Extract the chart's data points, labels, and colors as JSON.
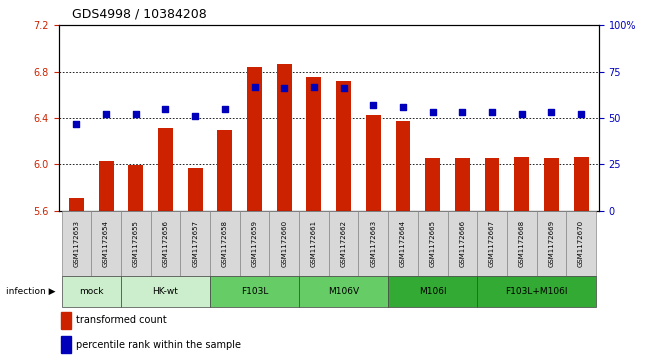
{
  "title": "GDS4998 / 10384208",
  "samples": [
    "GSM1172653",
    "GSM1172654",
    "GSM1172655",
    "GSM1172656",
    "GSM1172657",
    "GSM1172658",
    "GSM1172659",
    "GSM1172660",
    "GSM1172661",
    "GSM1172662",
    "GSM1172663",
    "GSM1172664",
    "GSM1172665",
    "GSM1172666",
    "GSM1172667",
    "GSM1172668",
    "GSM1172669",
    "GSM1172670"
  ],
  "transformed_count": [
    5.71,
    6.03,
    5.99,
    6.31,
    5.97,
    6.3,
    6.84,
    6.87,
    6.75,
    6.72,
    6.43,
    6.37,
    6.05,
    6.05,
    6.05,
    6.06,
    6.05,
    6.06
  ],
  "percentile_rank": [
    47,
    52,
    52,
    55,
    51,
    55,
    67,
    66,
    67,
    66,
    57,
    56,
    53,
    53,
    53,
    52,
    53,
    52
  ],
  "ylim_left": [
    5.6,
    7.2
  ],
  "ylim_right": [
    0,
    100
  ],
  "yticks_left": [
    5.6,
    6.0,
    6.4,
    6.8,
    7.2
  ],
  "yticks_right": [
    0,
    25,
    50,
    75,
    100
  ],
  "ytick_labels_right": [
    "0",
    "25",
    "50",
    "75",
    "100%"
  ],
  "bar_color": "#cc2200",
  "dot_color": "#0000bb",
  "group_spans": [
    {
      "label": "mock",
      "start": 0,
      "end": 1,
      "color": "#cceecc"
    },
    {
      "label": "HK-wt",
      "start": 2,
      "end": 4,
      "color": "#cceecc"
    },
    {
      "label": "F103L",
      "start": 5,
      "end": 7,
      "color": "#66cc66"
    },
    {
      "label": "M106V",
      "start": 8,
      "end": 10,
      "color": "#66cc66"
    },
    {
      "label": "M106I",
      "start": 11,
      "end": 13,
      "color": "#33aa33"
    },
    {
      "label": "F103L+M106I",
      "start": 14,
      "end": 17,
      "color": "#33aa33"
    }
  ]
}
